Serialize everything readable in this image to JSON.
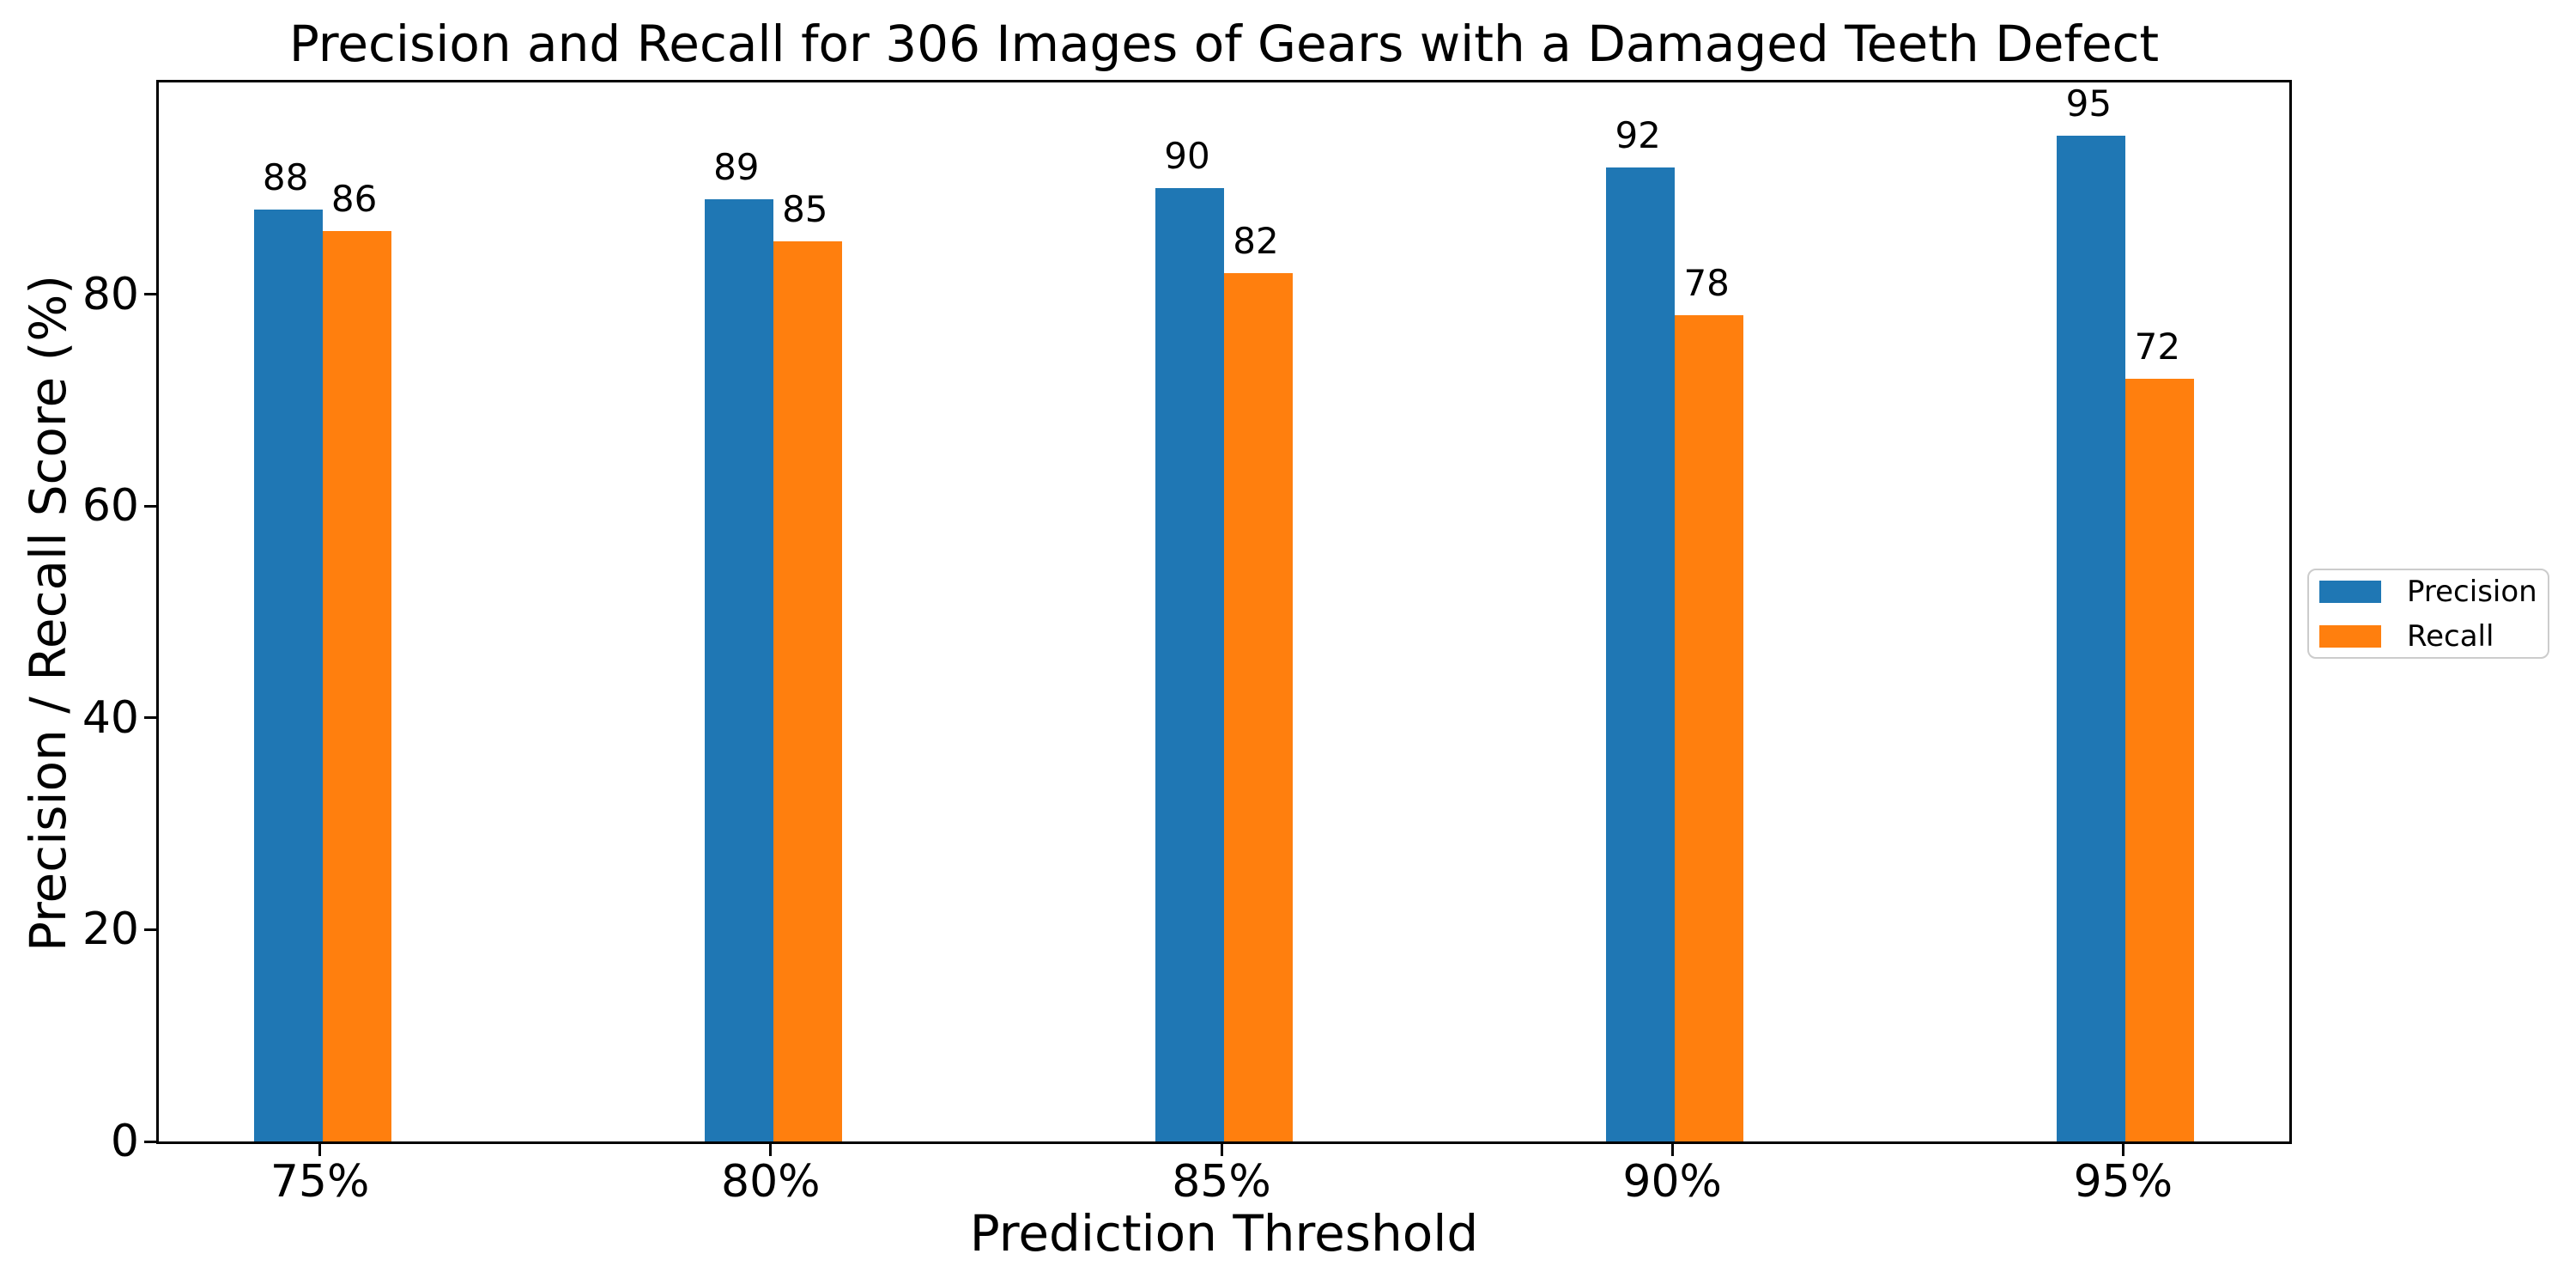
{
  "chart_data": {
    "type": "bar",
    "title": "Precision and Recall for 306 Images of Gears with a Damaged Teeth Defect",
    "xlabel": "Prediction Threshold",
    "ylabel": "Precision / Recall Score (%)",
    "categories": [
      "75%",
      "80%",
      "85%",
      "90%",
      "95%"
    ],
    "series": [
      {
        "name": "Precision",
        "color": "#1f77b4",
        "values": [
          88,
          89,
          90,
          92,
          95
        ]
      },
      {
        "name": "Recall",
        "color": "#ff7f0e",
        "values": [
          86,
          85,
          82,
          78,
          72
        ]
      }
    ],
    "ylim": [
      0,
      100
    ],
    "yticks": [
      0,
      20,
      40,
      60,
      80
    ],
    "grid": false,
    "bar_value_labels_shown": true,
    "legend": {
      "position": "center-right-outside",
      "entries": [
        "Precision",
        "Recall"
      ]
    },
    "colors": {
      "text": "#000000",
      "spine": "#000000",
      "background": "#ffffff",
      "legend_border": "#cccccc"
    }
  }
}
